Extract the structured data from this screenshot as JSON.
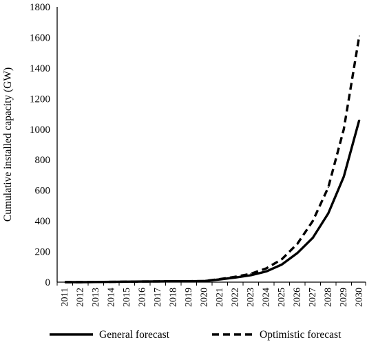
{
  "chart_data": {
    "type": "line",
    "title": "",
    "xlabel": "",
    "ylabel": "Cumulative installed capacity (GW)",
    "ylim": [
      0,
      1800
    ],
    "yticks": [
      0,
      200,
      400,
      600,
      800,
      1000,
      1200,
      1400,
      1600,
      1800
    ],
    "grid": false,
    "legend_position": "bottom",
    "categories": [
      "2011",
      "2012",
      "2013",
      "2014",
      "2015",
      "2016",
      "2017",
      "2018",
      "2019",
      "2020",
      "2021",
      "2022",
      "2023",
      "2024",
      "2025",
      "2026",
      "2027",
      "2028",
      "2029",
      "2030"
    ],
    "series": [
      {
        "name": "General forecast",
        "style": "solid",
        "color": "#000000",
        "values": [
          0,
          0,
          1,
          2,
          3,
          4,
          5,
          6,
          6,
          7,
          18,
          30,
          45,
          70,
          115,
          190,
          290,
          450,
          690,
          1060
        ]
      },
      {
        "name": "Optimistic forecast",
        "style": "dashed",
        "color": "#000000",
        "values": [
          0,
          0,
          1,
          2,
          3,
          4,
          5,
          6,
          6,
          7,
          20,
          35,
          55,
          90,
          150,
          250,
          400,
          620,
          1000,
          1610
        ]
      }
    ]
  }
}
